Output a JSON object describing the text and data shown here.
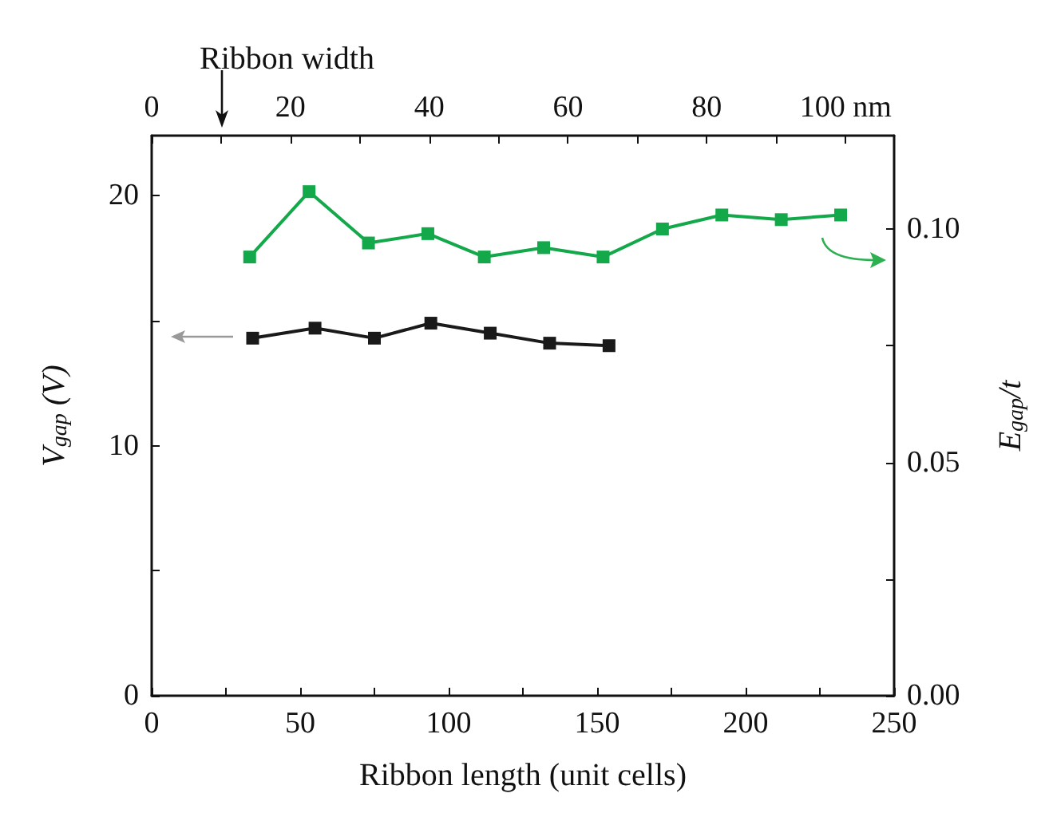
{
  "chart_data": {
    "type": "line",
    "xlabel": "Ribbon length (unit cells)",
    "ylabel": "V$_{gap}$ (V)",
    "y2label": "E$_{gap}$/t",
    "x2label": "Ribbon width",
    "xlim": [
      0,
      250
    ],
    "xticks": [
      0,
      {
        "value": 25,
        "label": null
      },
      50,
      {
        "value": 75,
        "label": null
      },
      100,
      {
        "value": 125,
        "label": null
      },
      150,
      {
        "value": 175,
        "label": null
      },
      200,
      {
        "value": 225,
        "label": null
      },
      250
    ],
    "x2lim": [
      0,
      107
    ],
    "x2ticks": [
      0,
      {
        "value": 10,
        "label": null
      },
      20,
      {
        "value": 30,
        "label": null
      },
      40,
      {
        "value": 50,
        "label": null
      },
      60,
      {
        "value": 70,
        "label": null
      },
      80,
      {
        "value": 90,
        "label": null
      },
      {
        "value": 100,
        "label": "100 nm"
      }
    ],
    "ylim": [
      0,
      22.4
    ],
    "yticks": [
      0,
      {
        "value": 5,
        "label": null
      },
      10,
      {
        "value": 15,
        "label": null
      },
      20
    ],
    "y2lim": [
      0,
      0.12
    ],
    "y2ticks": [
      {
        "value": 0,
        "label": "0.00"
      },
      {
        "value": 0.025,
        "label": null
      },
      {
        "value": 0.05,
        "label": "0.05"
      },
      {
        "value": 0.075,
        "label": null
      },
      {
        "value": 0.1,
        "label": "0.10"
      }
    ],
    "marker": "square",
    "series": [
      {
        "color": "#1a1a1a",
        "x": [
          34,
          55,
          75,
          94,
          114,
          134,
          154
        ],
        "values": [
          14.3,
          14.7,
          14.3,
          14.9,
          14.5,
          14.1,
          14.0
        ]
      },
      {
        "color": "#13a84a",
        "axis": "y2",
        "x": [
          33,
          53,
          73,
          93,
          112,
          132,
          152,
          172,
          192,
          212,
          232
        ],
        "values": [
          0.094,
          0.108,
          0.097,
          0.099,
          0.094,
          0.096,
          0.094,
          0.1,
          0.103,
          0.102,
          0.103
        ]
      }
    ]
  }
}
